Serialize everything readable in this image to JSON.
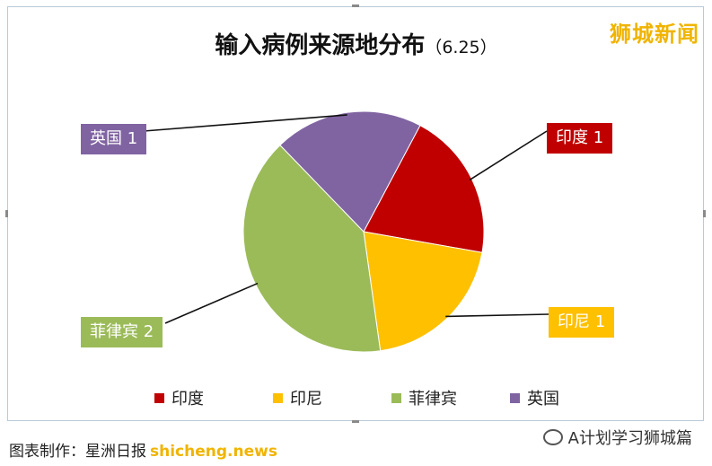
{
  "chart_data": {
    "type": "pie",
    "title": "输入病例来源地分布",
    "subtitle": "（6.25）",
    "categories": [
      "印度",
      "印尼",
      "菲律宾",
      "英国"
    ],
    "values": [
      1,
      1,
      2,
      1
    ],
    "colors": [
      "#c00000",
      "#ffc000",
      "#9bbb59",
      "#8064a2"
    ],
    "data_labels": [
      "印度 1",
      "印尼 1",
      "菲律宾 2",
      "英国 1"
    ],
    "legend_position": "bottom"
  },
  "watermark": "狮城新闻",
  "caption": {
    "text": "图表制作：星洲日报",
    "site": "shicheng.news"
  },
  "account": "A计划学习狮城篇"
}
